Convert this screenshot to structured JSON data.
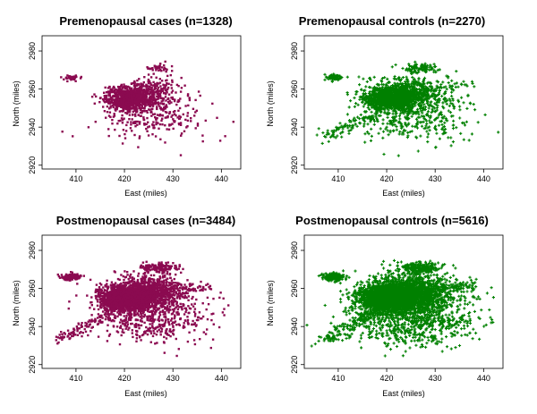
{
  "colors": {
    "cases": "#8b0a50",
    "controls": "#008000"
  },
  "chart_data": [
    {
      "type": "scatter",
      "title": "Premenopausal cases (n=1328)",
      "xlabel": "East (miles)",
      "ylabel": "North (miles)",
      "xlim": [
        403,
        444
      ],
      "ylim": [
        2918,
        2988
      ],
      "xticks": [
        410,
        420,
        430,
        440
      ],
      "yticks": [
        2920,
        2940,
        2960,
        2980
      ],
      "n": 1328,
      "color_key": "cases",
      "marker": "square",
      "clusters": [
        {
          "cx": 421,
          "cy": 2955,
          "sx": 2.6,
          "sy": 3.0,
          "w": 0.55
        },
        {
          "cx": 425,
          "cy": 2958,
          "sx": 3.5,
          "sy": 4.0,
          "w": 0.2
        },
        {
          "cx": 409,
          "cy": 2966,
          "sx": 0.8,
          "sy": 0.8,
          "w": 0.03
        },
        {
          "cx": 427,
          "cy": 2971,
          "sx": 1.5,
          "sy": 1.0,
          "w": 0.03
        },
        {
          "cx": 426,
          "cy": 2945,
          "sx": 5,
          "sy": 6,
          "w": 0.19
        }
      ],
      "tails": []
    },
    {
      "type": "scatter",
      "title": "Premenopausal controls (n=2270)",
      "xlabel": "East (miles)",
      "ylabel": "North (miles)",
      "xlim": [
        403,
        444
      ],
      "ylim": [
        2918,
        2988
      ],
      "xticks": [
        410,
        420,
        430,
        440
      ],
      "yticks": [
        2920,
        2940,
        2960,
        2980
      ],
      "n": 2270,
      "color_key": "controls",
      "marker": "cross",
      "clusters": [
        {
          "cx": 421,
          "cy": 2955,
          "sx": 2.8,
          "sy": 3.2,
          "w": 0.5
        },
        {
          "cx": 425,
          "cy": 2958,
          "sx": 4,
          "sy": 4.5,
          "w": 0.2
        },
        {
          "cx": 409,
          "cy": 2966,
          "sx": 0.8,
          "sy": 0.8,
          "w": 0.03
        },
        {
          "cx": 427,
          "cy": 2971,
          "sx": 1.8,
          "sy": 1.2,
          "w": 0.04
        },
        {
          "cx": 426,
          "cy": 2945,
          "sx": 6,
          "sy": 7,
          "w": 0.15
        }
      ],
      "tails": [
        {
          "x0": 407,
          "y0": 2933,
          "x1": 419,
          "y1": 2950,
          "n": 90,
          "j": 1.2
        },
        {
          "x0": 423,
          "y0": 2957,
          "x1": 437,
          "y1": 2963,
          "n": 45,
          "j": 1.0
        }
      ]
    },
    {
      "type": "scatter",
      "title": "Postmenopausal cases (n=3484)",
      "xlabel": "East (miles)",
      "ylabel": "North (miles)",
      "xlim": [
        403,
        444
      ],
      "ylim": [
        2918,
        2988
      ],
      "xticks": [
        410,
        420,
        430,
        440
      ],
      "yticks": [
        2920,
        2940,
        2960,
        2980
      ],
      "n": 3484,
      "color_key": "cases",
      "marker": "square",
      "clusters": [
        {
          "cx": 421,
          "cy": 2955,
          "sx": 2.8,
          "sy": 3.2,
          "w": 0.5
        },
        {
          "cx": 425,
          "cy": 2958,
          "sx": 4,
          "sy": 4.5,
          "w": 0.22
        },
        {
          "cx": 409,
          "cy": 2966,
          "sx": 1.0,
          "sy": 0.8,
          "w": 0.04
        },
        {
          "cx": 427,
          "cy": 2971,
          "sx": 1.8,
          "sy": 1.2,
          "w": 0.04
        },
        {
          "cx": 426,
          "cy": 2945,
          "sx": 6,
          "sy": 7,
          "w": 0.14
        }
      ],
      "tails": [
        {
          "x0": 407,
          "y0": 2933,
          "x1": 419,
          "y1": 2950,
          "n": 120,
          "j": 1.2
        },
        {
          "x0": 423,
          "y0": 2957,
          "x1": 437,
          "y1": 2961,
          "n": 80,
          "j": 1.0
        }
      ]
    },
    {
      "type": "scatter",
      "title": "Postmenopausal controls (n=5616)",
      "xlabel": "East (miles)",
      "ylabel": "North (miles)",
      "xlim": [
        403,
        444
      ],
      "ylim": [
        2918,
        2988
      ],
      "xticks": [
        410,
        420,
        430,
        440
      ],
      "yticks": [
        2920,
        2940,
        2960,
        2980
      ],
      "n": 5616,
      "color_key": "controls",
      "marker": "cross",
      "clusters": [
        {
          "cx": 421,
          "cy": 2955,
          "sx": 3.0,
          "sy": 3.4,
          "w": 0.48
        },
        {
          "cx": 425,
          "cy": 2958,
          "sx": 4.5,
          "sy": 5,
          "w": 0.22
        },
        {
          "cx": 409,
          "cy": 2966,
          "sx": 1.0,
          "sy": 0.9,
          "w": 0.04
        },
        {
          "cx": 427,
          "cy": 2971,
          "sx": 2.0,
          "sy": 1.4,
          "w": 0.04
        },
        {
          "cx": 426,
          "cy": 2945,
          "sx": 6.5,
          "sy": 7.5,
          "w": 0.15
        }
      ],
      "tails": [
        {
          "x0": 407,
          "y0": 2932,
          "x1": 419,
          "y1": 2950,
          "n": 180,
          "j": 1.3
        },
        {
          "x0": 423,
          "y0": 2957,
          "x1": 438,
          "y1": 2962,
          "n": 120,
          "j": 1.0
        }
      ]
    }
  ]
}
